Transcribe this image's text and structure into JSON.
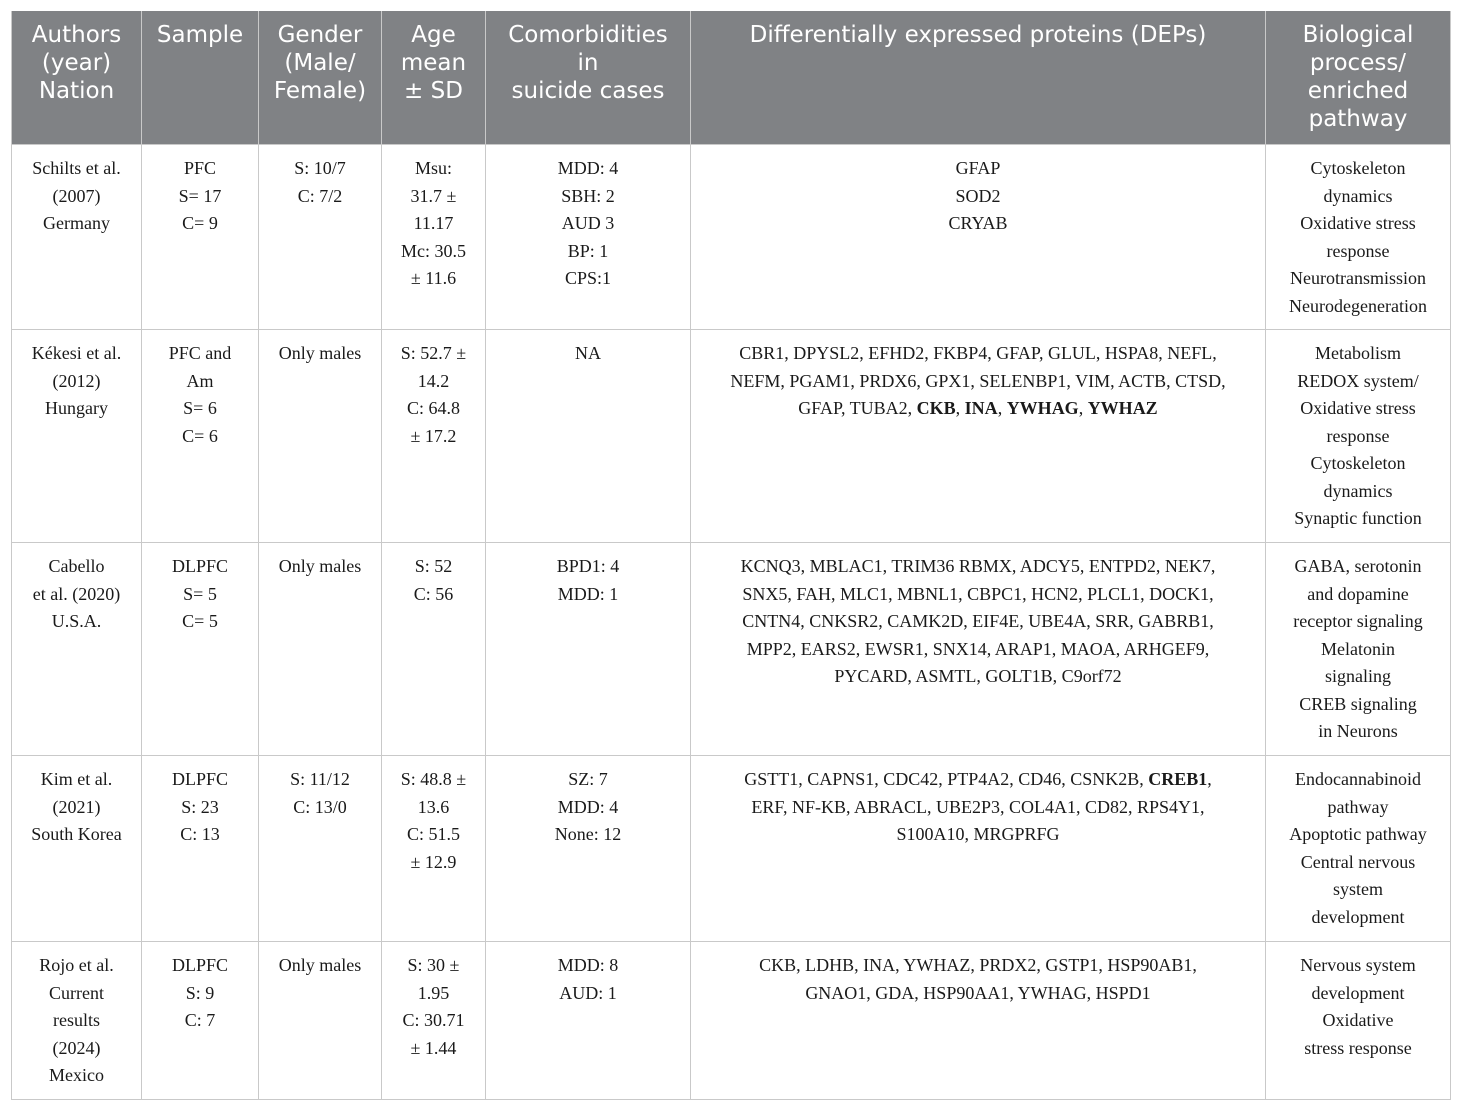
{
  "headers": [
    {
      "lines": [
        "Authors",
        "(year)",
        "Nation"
      ]
    },
    {
      "lines": [
        "Sample"
      ]
    },
    {
      "lines": [
        "Gender",
        "(Male/",
        "Female)"
      ]
    },
    {
      "lines": [
        "Age",
        "mean",
        "± SD"
      ]
    },
    {
      "lines": [
        "Comorbidities",
        "in",
        "suicide cases"
      ]
    },
    {
      "lines": [
        "Differentially expressed proteins (DEPs)"
      ]
    },
    {
      "lines": [
        "Biological",
        "process/",
        "enriched",
        "pathway"
      ]
    }
  ],
  "rows": [
    {
      "authors": [
        "Schilts et al.",
        "(2007)",
        "Germany"
      ],
      "sample": [
        "PFC",
        "S= 17",
        "C= 9"
      ],
      "gender": [
        "S: 10/7",
        "C: 7/2"
      ],
      "age": [
        "Msu:",
        "31.7 ±",
        "11.17",
        "Mc: 30.5",
        "± 11.6"
      ],
      "comorbidities": [
        "MDD: 4",
        "SBH: 2",
        "AUD 3",
        "BP: 1",
        "CPS:1"
      ],
      "deps": [
        [
          {
            "t": "GFAP",
            "b": false
          }
        ],
        [
          {
            "t": "SOD2",
            "b": false
          }
        ],
        [
          {
            "t": "CRYAB",
            "b": false
          }
        ]
      ],
      "process": [
        "Cytoskeleton",
        "dynamics",
        "Oxidative stress",
        "response",
        "Neurotransmission",
        "Neurodegeneration"
      ]
    },
    {
      "authors": [
        "Kékesi et al.",
        "(2012)",
        "Hungary"
      ],
      "sample": [
        "PFC and",
        "Am",
        "S= 6",
        "C= 6"
      ],
      "gender": [
        "Only males"
      ],
      "age": [
        "S: 52.7 ±",
        "14.2",
        "C: 64.8",
        "± 17.2"
      ],
      "comorbidities": [
        "NA"
      ],
      "deps": [
        [
          {
            "t": "CBR1, DPYSL2, EFHD2, FKBP4, GFAP, GLUL, HSPA8, NEFL,",
            "b": false
          }
        ],
        [
          {
            "t": "NEFM, PGAM1, PRDX6, GPX1, SELENBP1, VIM, ACTB, CTSD,",
            "b": false
          }
        ],
        [
          {
            "t": "GFAP, TUBA2, ",
            "b": false
          },
          {
            "t": "CKB",
            "b": true
          },
          {
            "t": ", ",
            "b": false
          },
          {
            "t": "INA",
            "b": true
          },
          {
            "t": ", ",
            "b": false
          },
          {
            "t": "YWHAG",
            "b": true
          },
          {
            "t": ", ",
            "b": false
          },
          {
            "t": "YWHAZ",
            "b": true
          }
        ]
      ],
      "process": [
        "Metabolism",
        "REDOX system/",
        "Oxidative stress",
        "response",
        "Cytoskeleton",
        "dynamics",
        "Synaptic function"
      ]
    },
    {
      "authors": [
        "Cabello",
        "et al. (2020)",
        "U.S.A."
      ],
      "sample": [
        "DLPFC",
        "S= 5",
        "C= 5"
      ],
      "gender": [
        "Only males"
      ],
      "age": [
        "S: 52",
        "C: 56"
      ],
      "comorbidities": [
        "BPD1: 4",
        "MDD: 1"
      ],
      "deps": [
        [
          {
            "t": "KCNQ3, MBLAC1, TRIM36 RBMX, ADCY5, ENTPD2, NEK7,",
            "b": false
          }
        ],
        [
          {
            "t": "SNX5, FAH, MLC1, MBNL1, CBPC1, HCN2, PLCL1, DOCK1,",
            "b": false
          }
        ],
        [
          {
            "t": "CNTN4, CNKSR2, CAMK2D, EIF4E, UBE4A, SRR, GABRB1,",
            "b": false
          }
        ],
        [
          {
            "t": "MPP2, EARS2, EWSR1, SNX14, ARAP1, MAOA, ARHGEF9,",
            "b": false
          }
        ],
        [
          {
            "t": "PYCARD, ASMTL, GOLT1B, C9orf72",
            "b": false
          }
        ]
      ],
      "process": [
        "GABA, serotonin",
        "and dopamine",
        "receptor signaling",
        "Melatonin",
        "signaling",
        "CREB signaling",
        "in Neurons"
      ]
    },
    {
      "authors": [
        "Kim et al.",
        "(2021)",
        "South Korea"
      ],
      "sample": [
        "DLPFC",
        "S: 23",
        "C: 13"
      ],
      "gender": [
        "S: 11/12",
        "C: 13/0"
      ],
      "age": [
        "S: 48.8 ±",
        "13.6",
        "C: 51.5",
        "± 12.9"
      ],
      "comorbidities": [
        "SZ: 7",
        "MDD: 4",
        "None: 12"
      ],
      "deps": [
        [
          {
            "t": "GSTT1, CAPNS1, CDC42, PTP4A2, CD46, CSNK2B, ",
            "b": false
          },
          {
            "t": "CREB1",
            "b": true
          },
          {
            "t": ",",
            "b": false
          }
        ],
        [
          {
            "t": "ERF, NF-KB, ABRACL, UBE2P3, COL4A1, CD82, RPS4Y1,",
            "b": false
          }
        ],
        [
          {
            "t": "S100A10, MRGPRFG",
            "b": false
          }
        ]
      ],
      "process": [
        "Endocannabinoid",
        "pathway",
        "Apoptotic pathway",
        "Central nervous",
        "system",
        "development"
      ]
    },
    {
      "authors": [
        "Rojo et al.",
        "Current",
        "results",
        "(2024)",
        "Mexico"
      ],
      "sample": [
        "DLPFC",
        "S: 9",
        "C: 7"
      ],
      "gender": [
        "Only males"
      ],
      "age": [
        "S: 30 ±",
        "1.95",
        "C: 30.71",
        "± 1.44"
      ],
      "comorbidities": [
        "MDD: 8",
        "AUD: 1"
      ],
      "deps": [
        [
          {
            "t": "CKB, LDHB, INA, YWHAZ, PRDX2, GSTP1, HSP90AB1,",
            "b": false
          }
        ],
        [
          {
            "t": "GNAO1, GDA, HSP90AA1, YWHAG, HSPD1",
            "b": false
          }
        ]
      ],
      "process": [
        "Nervous system",
        "development",
        "Oxidative",
        "stress response"
      ]
    }
  ]
}
